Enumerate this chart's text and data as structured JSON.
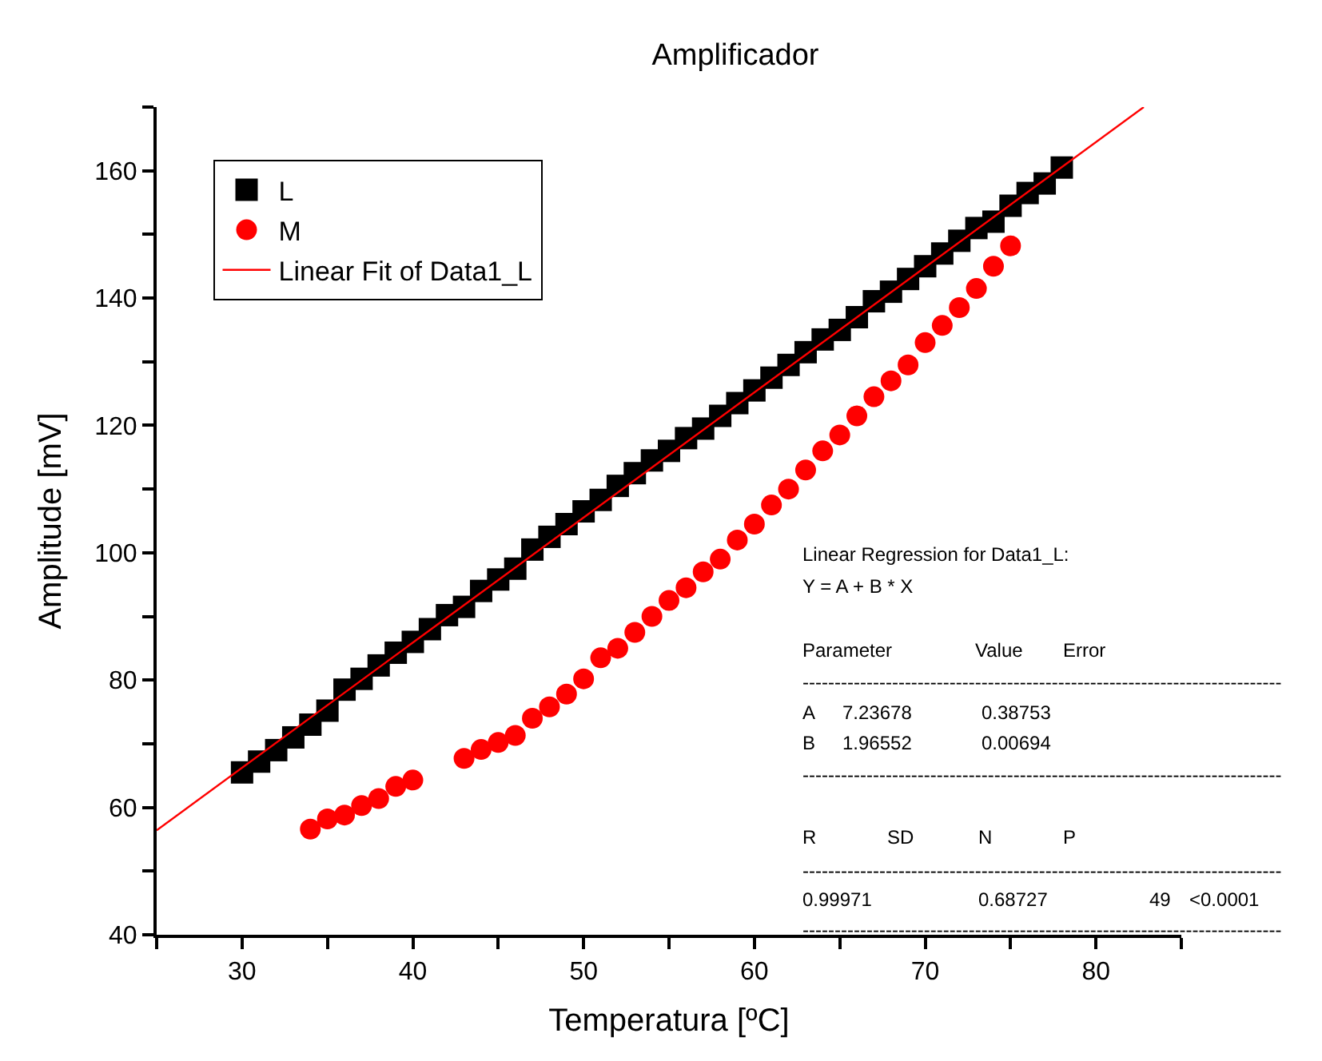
{
  "chart_data": {
    "type": "scatter",
    "title": "Amplificador",
    "xlabel": "Temperatura [ºC]",
    "ylabel": "Amplitude [mV]",
    "xlim": [
      25,
      85
    ],
    "ylim": [
      40,
      170
    ],
    "xticks": [
      {
        "value": 25,
        "label": null
      },
      30,
      {
        "value": 35,
        "label": null
      },
      40,
      {
        "value": 45,
        "label": null
      },
      50,
      {
        "value": 55,
        "label": null
      },
      60,
      {
        "value": 65,
        "label": null
      },
      70,
      {
        "value": 75,
        "label": null
      },
      80,
      {
        "value": 85,
        "label": null
      }
    ],
    "yticks": [
      40,
      {
        "value": 50,
        "label": null
      },
      60,
      {
        "value": 70,
        "label": null
      },
      80,
      {
        "value": 90,
        "label": null
      },
      100,
      {
        "value": 110,
        "label": null
      },
      120,
      {
        "value": 130,
        "label": null
      },
      140,
      {
        "value": 150,
        "label": null
      },
      160,
      {
        "value": 170,
        "label": null
      }
    ],
    "legend": "top left",
    "series": [
      {
        "name": "L",
        "color": "#000000",
        "marker": "square",
        "x": [
          30,
          31,
          32,
          33,
          34,
          35,
          36,
          37,
          38,
          39,
          40,
          41,
          42,
          43,
          44,
          45,
          46,
          47,
          48,
          49,
          50,
          51,
          52,
          53,
          54,
          55,
          56,
          57,
          58,
          59,
          60,
          61,
          62,
          63,
          64,
          65,
          66,
          67,
          68,
          69,
          70,
          71,
          72,
          73,
          74,
          75,
          76,
          77,
          78
        ],
        "values": [
          65.5,
          67.2,
          69.0,
          71.0,
          73.0,
          75.2,
          78.5,
          80.2,
          82.3,
          84.3,
          86.0,
          88.0,
          90.2,
          91.5,
          94.0,
          95.8,
          97.5,
          100.5,
          102.5,
          104.5,
          106.5,
          108.3,
          110.5,
          112.5,
          114.5,
          116.0,
          118.0,
          119.5,
          121.5,
          123.5,
          125.5,
          127.5,
          129.5,
          131.5,
          133.5,
          135.0,
          137.0,
          139.5,
          141.0,
          143.0,
          145.0,
          147.0,
          149.0,
          151.0,
          152.0,
          154.5,
          156.5,
          158.0,
          160.5
        ]
      },
      {
        "name": "M",
        "color": "#ff0000",
        "marker": "circle",
        "x": [
          34,
          35,
          36,
          37,
          38,
          39,
          40,
          43,
          44,
          45,
          46,
          47,
          48,
          49,
          50,
          51,
          52,
          53,
          54,
          55,
          56,
          57,
          58,
          59,
          60,
          61,
          62,
          63,
          64,
          65,
          66,
          67,
          68,
          69,
          70,
          71,
          72,
          73,
          74,
          75
        ],
        "values": [
          56.6,
          58.2,
          58.8,
          60.3,
          61.4,
          63.3,
          64.3,
          67.7,
          69.1,
          70.2,
          71.3,
          74.0,
          75.8,
          77.8,
          80.2,
          83.5,
          85.0,
          87.5,
          90.0,
          92.5,
          94.5,
          97.0,
          99.0,
          102.0,
          104.5,
          107.5,
          110.0,
          113.0,
          116.0,
          118.5,
          121.5,
          124.5,
          127.0,
          129.5,
          133.0,
          135.7,
          138.5,
          141.5,
          145.0,
          148.2
        ]
      },
      {
        "name": "Linear Fit of Data1_L",
        "type": "line",
        "color": "#ff0000",
        "marker": "none",
        "line_style": "solid",
        "x": [
          25,
          82.8
        ],
        "values": [
          56.4,
          170.0
        ]
      }
    ],
    "annotations": [
      "Linear Regression for Data1_L:",
      "Y = A + B * X",
      "Parameter",
      "Value",
      "Error",
      "---------------------------------------------------------------------------",
      "A",
      "7.23678",
      "0.38753",
      "B",
      "1.96552",
      "0.00694",
      "---------------------------------------------------------------------------",
      "R",
      "SD",
      "N",
      "P",
      "---------------------------------------------------------------------------",
      "0.99971",
      "0.68727",
      "49",
      "<0.0001",
      "---------------------------------------------------------------------------"
    ]
  }
}
